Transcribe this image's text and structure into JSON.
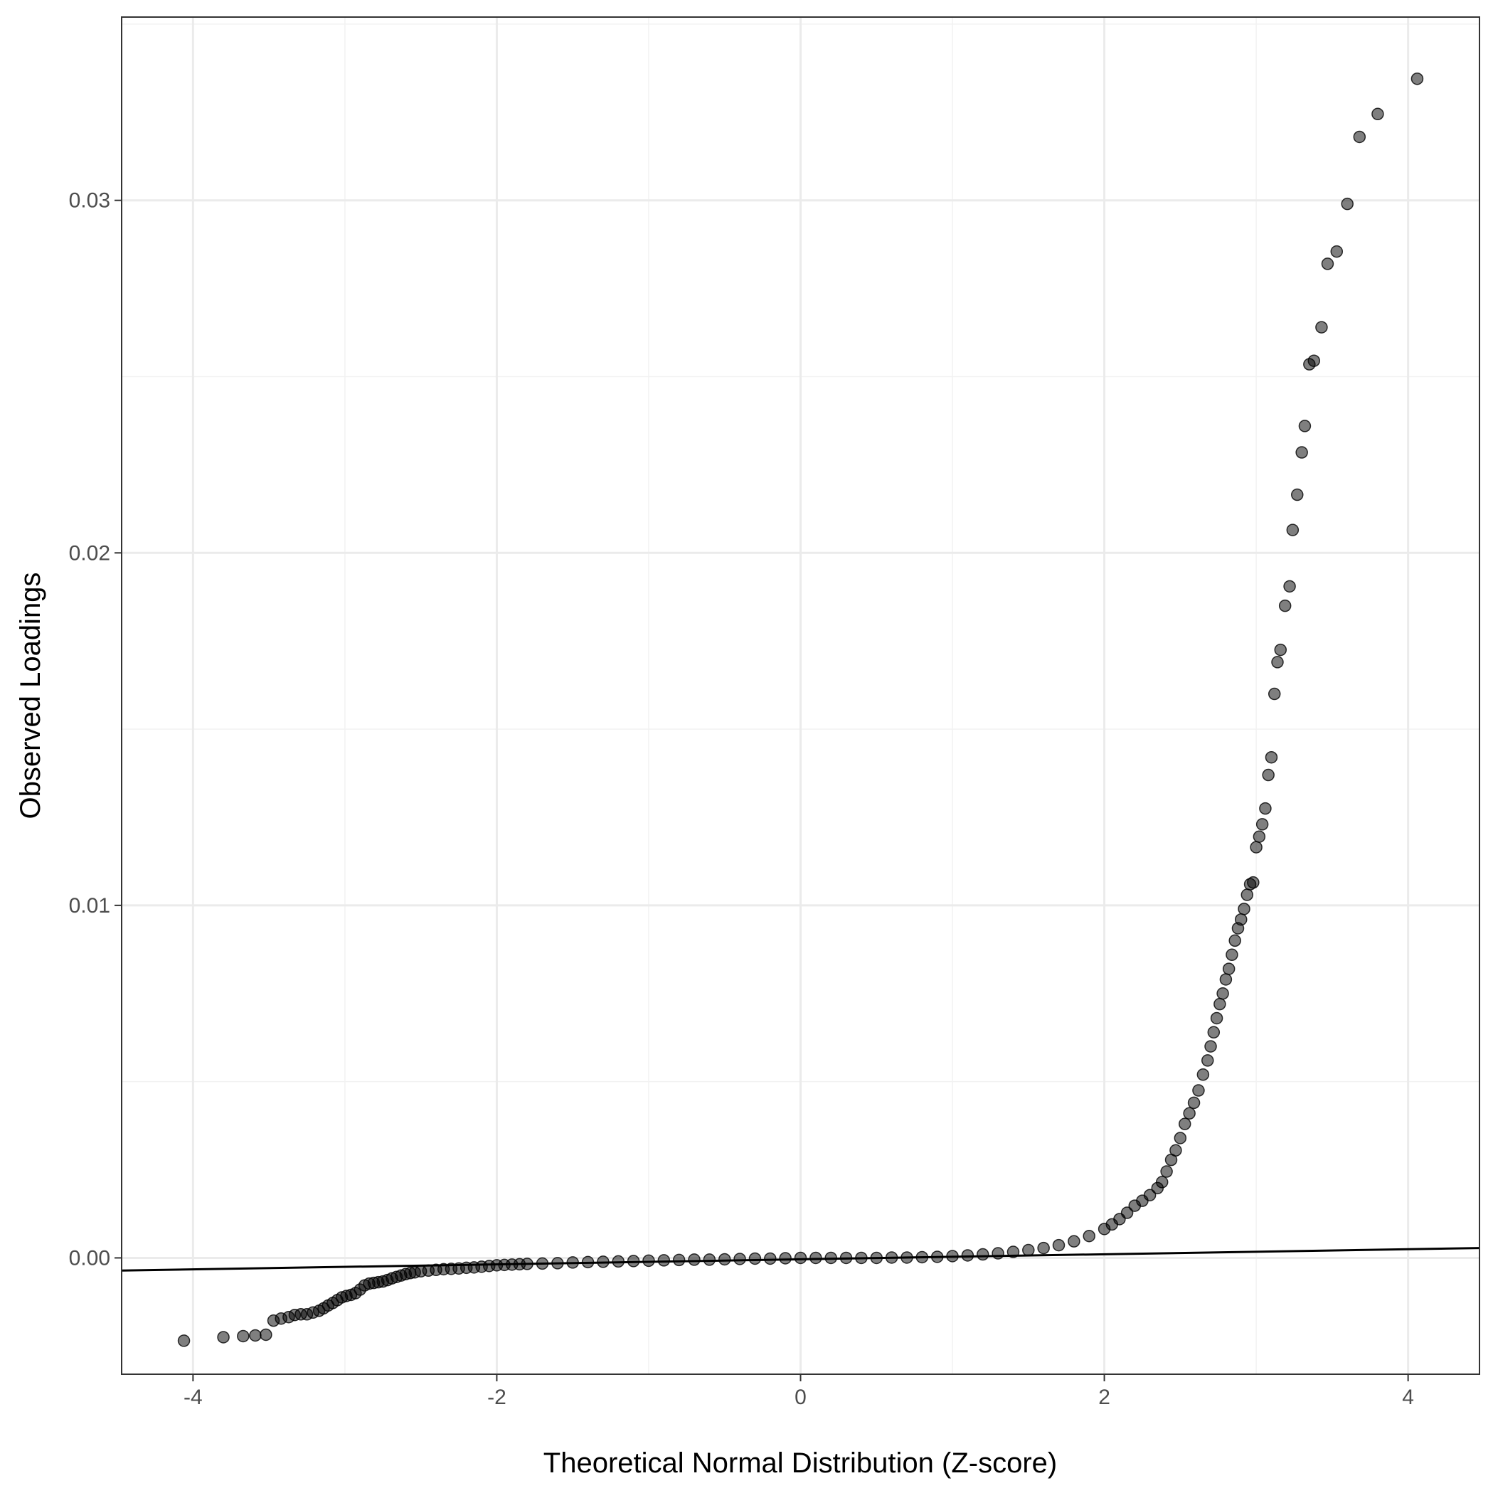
{
  "chart_data": {
    "type": "scatter",
    "xlabel": "Theoretical Normal Distribution (Z-score)",
    "ylabel": "Observed Loadings",
    "xlim": [
      -4.47,
      4.47
    ],
    "ylim": [
      -0.0033,
      0.0352
    ],
    "x_ticks": [
      -4,
      -2,
      0,
      2,
      4
    ],
    "x_tick_labels": [
      "-4",
      "-2",
      "0",
      "2",
      "4"
    ],
    "y_ticks": [
      0.0,
      0.01,
      0.02,
      0.03
    ],
    "y_tick_labels": [
      "0.00",
      "0.01",
      "0.02",
      "0.03"
    ],
    "grid": true,
    "legend": "none",
    "reference_line": {
      "x": [
        -4.47,
        4.47
      ],
      "y": [
        -0.00036,
        0.00028
      ],
      "color": "#000000"
    },
    "point_color": "#000000",
    "point_opacity": 0.5,
    "series": [
      {
        "points": [
          [
            -4.06,
            -0.00235
          ],
          [
            -3.8,
            -0.00225
          ],
          [
            -3.67,
            -0.00222
          ],
          [
            -3.59,
            -0.0022
          ],
          [
            -3.52,
            -0.00218
          ],
          [
            -3.47,
            -0.00178
          ],
          [
            -3.42,
            -0.00172
          ],
          [
            -3.37,
            -0.00168
          ],
          [
            -3.33,
            -0.00162
          ],
          [
            -3.29,
            -0.0016
          ],
          [
            -3.25,
            -0.0016
          ],
          [
            -3.21,
            -0.00155
          ],
          [
            -3.17,
            -0.0015
          ],
          [
            -3.14,
            -0.00143
          ],
          [
            -3.11,
            -0.00135
          ],
          [
            -3.08,
            -0.00128
          ],
          [
            -3.05,
            -0.0012
          ],
          [
            -3.02,
            -0.00112
          ],
          [
            -2.99,
            -0.00108
          ],
          [
            -2.96,
            -0.00105
          ],
          [
            -2.93,
            -0.001
          ],
          [
            -2.9,
            -0.0009
          ],
          [
            -2.87,
            -0.00078
          ],
          [
            -2.84,
            -0.00073
          ],
          [
            -2.81,
            -0.00071
          ],
          [
            -2.78,
            -0.00069
          ],
          [
            -2.75,
            -0.00067
          ],
          [
            -2.72,
            -0.00063
          ],
          [
            -2.69,
            -0.00058
          ],
          [
            -2.66,
            -0.00054
          ],
          [
            -2.63,
            -0.0005
          ],
          [
            -2.6,
            -0.00046
          ],
          [
            -2.57,
            -0.00043
          ],
          [
            -2.54,
            -0.00041
          ],
          [
            -2.5,
            -0.00038
          ],
          [
            -2.45,
            -0.00036
          ],
          [
            -2.4,
            -0.00034
          ],
          [
            -2.35,
            -0.00032
          ],
          [
            -2.3,
            -0.00031
          ],
          [
            -2.25,
            -0.0003
          ],
          [
            -2.2,
            -0.00028
          ],
          [
            -2.15,
            -0.00027
          ],
          [
            -2.1,
            -0.00025
          ],
          [
            -2.05,
            -0.00023
          ],
          [
            -2.0,
            -0.00021
          ],
          [
            -1.95,
            -0.0002
          ],
          [
            -1.9,
            -0.00019
          ],
          [
            -1.85,
            -0.00018
          ],
          [
            -1.8,
            -0.00017
          ],
          [
            -1.7,
            -0.00016
          ],
          [
            -1.6,
            -0.00015
          ],
          [
            -1.5,
            -0.00013
          ],
          [
            -1.4,
            -0.00012
          ],
          [
            -1.3,
            -0.00011
          ],
          [
            -1.2,
            -0.0001
          ],
          [
            -1.1,
            -9e-05
          ],
          [
            -1.0,
            -8e-05
          ],
          [
            -0.9,
            -7e-05
          ],
          [
            -0.8,
            -6e-05
          ],
          [
            -0.7,
            -5e-05
          ],
          [
            -0.6,
            -5e-05
          ],
          [
            -0.5,
            -4e-05
          ],
          [
            -0.4,
            -3e-05
          ],
          [
            -0.3,
            -2e-05
          ],
          [
            -0.2,
            -2e-05
          ],
          [
            -0.1,
            -1e-05
          ],
          [
            0.0,
            0.0
          ],
          [
            0.1,
            0.0
          ],
          [
            0.2,
            0.0
          ],
          [
            0.3,
            0.0
          ],
          [
            0.4,
            0.0
          ],
          [
            0.5,
            0.0
          ],
          [
            0.6,
            1e-05
          ],
          [
            0.7,
            1e-05
          ],
          [
            0.8,
            2e-05
          ],
          [
            0.9,
            3e-05
          ],
          [
            1.0,
            5e-05
          ],
          [
            1.1,
            7e-05
          ],
          [
            1.2,
            0.0001
          ],
          [
            1.3,
            0.00013
          ],
          [
            1.4,
            0.00017
          ],
          [
            1.5,
            0.00022
          ],
          [
            1.6,
            0.00028
          ],
          [
            1.7,
            0.00036
          ],
          [
            1.8,
            0.00047
          ],
          [
            1.9,
            0.00062
          ],
          [
            2.0,
            0.00082
          ],
          [
            2.05,
            0.00095
          ],
          [
            2.1,
            0.0011
          ],
          [
            2.15,
            0.00128
          ],
          [
            2.2,
            0.00148
          ],
          [
            2.25,
            0.00162
          ],
          [
            2.3,
            0.00178
          ],
          [
            2.35,
            0.00198
          ],
          [
            2.38,
            0.00215
          ],
          [
            2.41,
            0.00245
          ],
          [
            2.44,
            0.00278
          ],
          [
            2.47,
            0.00305
          ],
          [
            2.5,
            0.0034
          ],
          [
            2.53,
            0.0038
          ],
          [
            2.56,
            0.0041
          ],
          [
            2.59,
            0.0044
          ],
          [
            2.62,
            0.00475
          ],
          [
            2.65,
            0.0052
          ],
          [
            2.68,
            0.0056
          ],
          [
            2.7,
            0.006
          ],
          [
            2.72,
            0.0064
          ],
          [
            2.74,
            0.0068
          ],
          [
            2.76,
            0.0072
          ],
          [
            2.78,
            0.0075
          ],
          [
            2.8,
            0.0079
          ],
          [
            2.82,
            0.0082
          ],
          [
            2.84,
            0.0086
          ],
          [
            2.86,
            0.009
          ],
          [
            2.88,
            0.00935
          ],
          [
            2.9,
            0.0096
          ],
          [
            2.92,
            0.0099
          ],
          [
            2.94,
            0.0103
          ],
          [
            2.96,
            0.0106
          ],
          [
            2.98,
            0.01065
          ],
          [
            3.0,
            0.01165
          ],
          [
            3.02,
            0.01195
          ],
          [
            3.04,
            0.0123
          ],
          [
            3.06,
            0.01275
          ],
          [
            3.08,
            0.0137
          ],
          [
            3.1,
            0.0142
          ],
          [
            3.12,
            0.016
          ],
          [
            3.14,
            0.0169
          ],
          [
            3.16,
            0.01725
          ],
          [
            3.19,
            0.0185
          ],
          [
            3.22,
            0.01905
          ],
          [
            3.24,
            0.02065
          ],
          [
            3.27,
            0.02165
          ],
          [
            3.3,
            0.02285
          ],
          [
            3.32,
            0.0236
          ],
          [
            3.35,
            0.02535
          ],
          [
            3.38,
            0.02545
          ],
          [
            3.43,
            0.0264
          ],
          [
            3.47,
            0.0282
          ],
          [
            3.53,
            0.02855
          ],
          [
            3.6,
            0.0299
          ],
          [
            3.68,
            0.0318
          ],
          [
            3.8,
            0.03245
          ],
          [
            4.06,
            0.03345
          ]
        ]
      }
    ]
  }
}
